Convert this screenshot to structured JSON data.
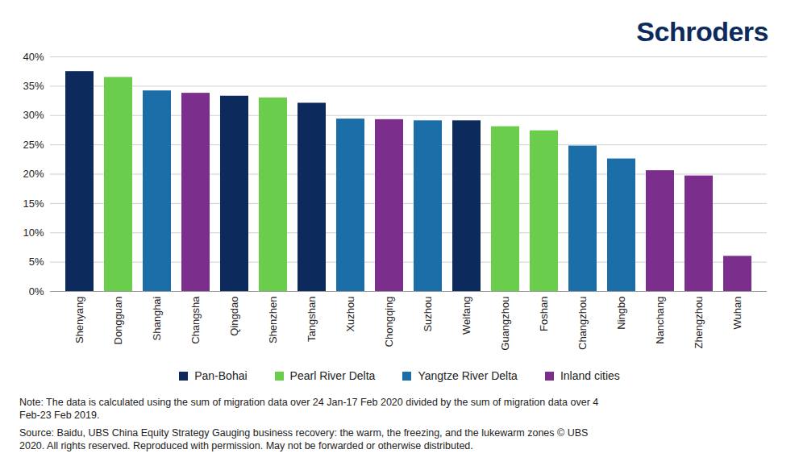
{
  "chart_data": {
    "type": "bar",
    "brand": "Schroders",
    "categories": [
      "Shenyang",
      "Dongguan",
      "Shanghai",
      "Changsha",
      "Qingdao",
      "Shenzhen",
      "Tangshan",
      "Xuzhou",
      "Chongqing",
      "Suzhou",
      "Weifang",
      "Guangzhou",
      "Foshan",
      "Changzhou",
      "Ningbo",
      "Nanchang",
      "Zhengzhou",
      "Wuhan"
    ],
    "series": [
      {
        "name": "Pan-Bohai",
        "color": "#0d2a5c",
        "values": [
          37.5,
          null,
          null,
          null,
          33.3,
          null,
          32.1,
          null,
          null,
          null,
          29.1,
          null,
          null,
          null,
          null,
          null,
          null,
          null
        ]
      },
      {
        "name": "Pearl River Delta",
        "color": "#6acd4c",
        "values": [
          null,
          36.5,
          null,
          null,
          null,
          33.0,
          null,
          null,
          null,
          null,
          null,
          28.1,
          27.4,
          null,
          null,
          null,
          null,
          null
        ]
      },
      {
        "name": "Yangtze River Delta",
        "color": "#1b6ea8",
        "values": [
          null,
          null,
          34.2,
          null,
          null,
          null,
          null,
          29.4,
          null,
          29.1,
          null,
          null,
          null,
          24.8,
          22.6,
          null,
          null,
          null
        ]
      },
      {
        "name": "Inland cities",
        "color": "#7c2e8c",
        "values": [
          null,
          null,
          null,
          33.8,
          null,
          null,
          null,
          null,
          29.3,
          null,
          null,
          null,
          null,
          null,
          null,
          20.6,
          19.7,
          6.0
        ]
      }
    ],
    "ylim": [
      0,
      40
    ],
    "yticks": [
      {
        "value": 0,
        "label": "0%"
      },
      {
        "value": 5,
        "label": "5%"
      },
      {
        "value": 10,
        "label": "10%"
      },
      {
        "value": 15,
        "label": "15%"
      },
      {
        "value": 20,
        "label": "20%"
      },
      {
        "value": 25,
        "label": "25%"
      },
      {
        "value": 30,
        "label": "30%"
      },
      {
        "value": 35,
        "label": "35%"
      },
      {
        "value": 40,
        "label": "40%"
      }
    ],
    "grid": true,
    "legend": "bottom",
    "note": "Note: The data is calculated using the sum of migration data over 24 Jan-17 Feb 2020 divided by the sum of migration data over 4 Feb-23 Feb 2019.",
    "source": "Source: Baidu, UBS China Equity Strategy Gauging business recovery: the warm, the freezing, and the lukewarm zones © UBS 2020. All rights reserved. Reproduced with permission. May not be forwarded or otherwise distributed."
  }
}
